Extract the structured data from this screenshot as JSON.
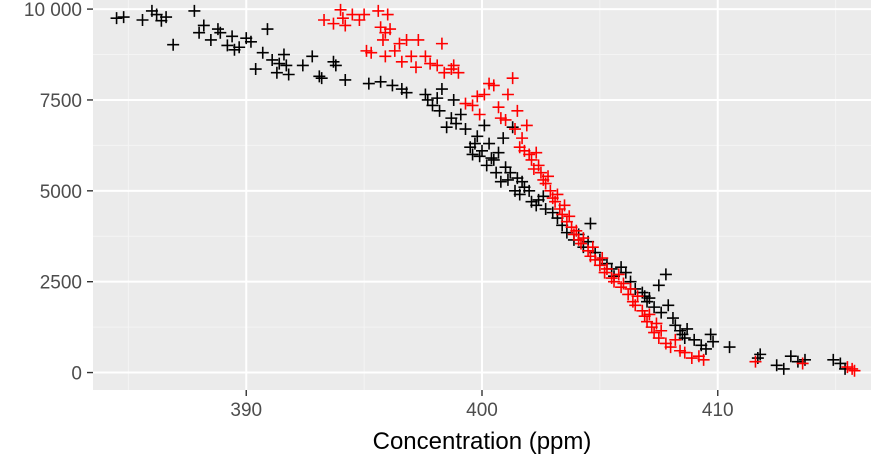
{
  "chart_data": {
    "type": "scatter",
    "title": "",
    "xlabel": "Concentration (ppm)",
    "ylabel": "",
    "xlim": [
      383.5,
      416.5
    ],
    "ylim": [
      -480,
      10250
    ],
    "x_ticks": [
      390,
      400,
      410
    ],
    "x_tick_labels": [
      "390",
      "400",
      "410"
    ],
    "y_ticks": [
      0,
      2500,
      5000,
      7500,
      10000
    ],
    "y_tick_labels": [
      "0",
      "2500",
      "5000",
      "7500",
      "10 000"
    ],
    "grid": true,
    "legend": "none",
    "marker": "plus",
    "colors": {
      "panel_background": "#ebebeb",
      "grid_major": "#ffffff",
      "grid_minor": "#f4f4f4",
      "series_1": "#000000",
      "series_2": "#ff0000"
    },
    "series": [
      {
        "color": "#000000",
        "points": [
          [
            384.5,
            9750
          ],
          [
            384.8,
            9780
          ],
          [
            385.6,
            9700
          ],
          [
            386.0,
            9950
          ],
          [
            386.2,
            9850
          ],
          [
            386.4,
            9680
          ],
          [
            386.6,
            9780
          ],
          [
            386.9,
            9020
          ],
          [
            387.8,
            9950
          ],
          [
            388.0,
            9350
          ],
          [
            388.2,
            9550
          ],
          [
            388.5,
            9150
          ],
          [
            388.8,
            9450
          ],
          [
            388.9,
            9350
          ],
          [
            389.2,
            9000
          ],
          [
            389.4,
            9250
          ],
          [
            389.5,
            8880
          ],
          [
            389.7,
            8950
          ],
          [
            390.0,
            9200
          ],
          [
            390.2,
            9100
          ],
          [
            390.4,
            8350
          ],
          [
            390.7,
            8800
          ],
          [
            390.9,
            9450
          ],
          [
            391.1,
            8600
          ],
          [
            391.3,
            8250
          ],
          [
            391.4,
            8500
          ],
          [
            391.6,
            8750
          ],
          [
            391.7,
            8450
          ],
          [
            391.8,
            8200
          ],
          [
            392.4,
            8450
          ],
          [
            392.8,
            8700
          ],
          [
            393.1,
            8150
          ],
          [
            393.2,
            8100
          ],
          [
            393.7,
            8550
          ],
          [
            393.8,
            8450
          ],
          [
            394.2,
            8050
          ],
          [
            395.2,
            7950
          ],
          [
            395.7,
            8000
          ],
          [
            396.2,
            7900
          ],
          [
            396.6,
            7800
          ],
          [
            396.8,
            7700
          ],
          [
            397.6,
            7650
          ],
          [
            397.7,
            7500
          ],
          [
            397.9,
            7350
          ],
          [
            398.1,
            7550
          ],
          [
            398.2,
            7200
          ],
          [
            398.3,
            7800
          ],
          [
            398.5,
            6750
          ],
          [
            398.7,
            7000
          ],
          [
            398.8,
            7500
          ],
          [
            398.9,
            6850
          ],
          [
            399.1,
            7100
          ],
          [
            399.3,
            6700
          ],
          [
            399.5,
            6200
          ],
          [
            399.6,
            6000
          ],
          [
            399.7,
            6300
          ],
          [
            399.8,
            6500
          ],
          [
            399.9,
            5950
          ],
          [
            400.0,
            6100
          ],
          [
            400.1,
            6800
          ],
          [
            400.2,
            5700
          ],
          [
            400.3,
            6300
          ],
          [
            400.4,
            5900
          ],
          [
            400.5,
            5850
          ],
          [
            400.6,
            5500
          ],
          [
            400.7,
            6050
          ],
          [
            400.8,
            5250
          ],
          [
            400.9,
            6450
          ],
          [
            401.0,
            5650
          ],
          [
            401.1,
            5300
          ],
          [
            401.2,
            5500
          ],
          [
            401.3,
            6750
          ],
          [
            401.4,
            5000
          ],
          [
            401.5,
            5350
          ],
          [
            401.6,
            4900
          ],
          [
            401.7,
            5250
          ],
          [
            401.8,
            5100
          ],
          [
            402.0,
            5000
          ],
          [
            402.1,
            4700
          ],
          [
            402.3,
            4600
          ],
          [
            402.4,
            4750
          ],
          [
            402.6,
            4850
          ],
          [
            402.7,
            4500
          ],
          [
            403.0,
            4400
          ],
          [
            403.2,
            4250
          ],
          [
            403.4,
            4050
          ],
          [
            403.6,
            3850
          ],
          [
            403.9,
            3650
          ],
          [
            404.1,
            3800
          ],
          [
            404.3,
            3450
          ],
          [
            404.5,
            3600
          ],
          [
            404.6,
            4100
          ],
          [
            404.8,
            3300
          ],
          [
            405.0,
            3100
          ],
          [
            405.3,
            3000
          ],
          [
            405.5,
            2850
          ],
          [
            405.6,
            2650
          ],
          [
            405.9,
            2900
          ],
          [
            406.1,
            2750
          ],
          [
            406.3,
            2500
          ],
          [
            406.5,
            2300
          ],
          [
            406.8,
            2200
          ],
          [
            406.9,
            2100
          ],
          [
            407.0,
            1950
          ],
          [
            407.1,
            2050
          ],
          [
            407.3,
            1800
          ],
          [
            407.5,
            2400
          ],
          [
            407.6,
            1650
          ],
          [
            407.8,
            2700
          ],
          [
            407.9,
            1850
          ],
          [
            408.1,
            1500
          ],
          [
            408.2,
            1300
          ],
          [
            408.4,
            1150
          ],
          [
            408.5,
            1050
          ],
          [
            408.6,
            950
          ],
          [
            408.7,
            1200
          ],
          [
            409.0,
            900
          ],
          [
            409.3,
            750
          ],
          [
            409.5,
            650
          ],
          [
            409.7,
            1050
          ],
          [
            409.8,
            850
          ],
          [
            410.5,
            700
          ],
          [
            411.7,
            400
          ],
          [
            411.8,
            500
          ],
          [
            412.5,
            200
          ],
          [
            412.8,
            100
          ],
          [
            413.1,
            450
          ],
          [
            413.4,
            300
          ],
          [
            413.7,
            350
          ],
          [
            414.9,
            350
          ],
          [
            415.2,
            250
          ],
          [
            415.4,
            100
          ]
        ]
      },
      {
        "color": "#ff0000",
        "points": [
          [
            393.3,
            9700
          ],
          [
            393.7,
            9600
          ],
          [
            394.0,
            9980
          ],
          [
            394.1,
            9750
          ],
          [
            394.2,
            9550
          ],
          [
            394.5,
            9850
          ],
          [
            394.8,
            9700
          ],
          [
            395.0,
            9850
          ],
          [
            395.1,
            8850
          ],
          [
            395.3,
            8800
          ],
          [
            395.6,
            9950
          ],
          [
            395.7,
            9500
          ],
          [
            395.8,
            9150
          ],
          [
            395.9,
            9350
          ],
          [
            395.9,
            8700
          ],
          [
            396.0,
            9850
          ],
          [
            396.1,
            9450
          ],
          [
            396.3,
            8850
          ],
          [
            396.5,
            9050
          ],
          [
            396.6,
            8550
          ],
          [
            396.8,
            9150
          ],
          [
            397.0,
            8700
          ],
          [
            397.2,
            8400
          ],
          [
            397.3,
            9150
          ],
          [
            397.6,
            8700
          ],
          [
            397.8,
            8500
          ],
          [
            398.1,
            8450
          ],
          [
            398.3,
            9050
          ],
          [
            398.4,
            8250
          ],
          [
            398.7,
            8350
          ],
          [
            398.8,
            8450
          ],
          [
            399.0,
            8250
          ],
          [
            399.3,
            7400
          ],
          [
            399.6,
            7350
          ],
          [
            399.8,
            7600
          ],
          [
            399.9,
            7100
          ],
          [
            400.1,
            7650
          ],
          [
            400.3,
            7950
          ],
          [
            400.5,
            7900
          ],
          [
            400.7,
            7300
          ],
          [
            400.8,
            7000
          ],
          [
            401.0,
            6950
          ],
          [
            401.1,
            7650
          ],
          [
            401.3,
            8100
          ],
          [
            401.4,
            6700
          ],
          [
            401.5,
            7200
          ],
          [
            401.6,
            6200
          ],
          [
            401.7,
            6450
          ],
          [
            401.8,
            6100
          ],
          [
            401.9,
            6800
          ],
          [
            402.0,
            6000
          ],
          [
            402.1,
            5850
          ],
          [
            402.2,
            5600
          ],
          [
            402.3,
            6050
          ],
          [
            402.4,
            5700
          ],
          [
            402.5,
            5500
          ],
          [
            402.6,
            5300
          ],
          [
            402.7,
            5200
          ],
          [
            402.8,
            5400
          ],
          [
            402.9,
            5000
          ],
          [
            403.0,
            4800
          ],
          [
            403.1,
            4700
          ],
          [
            403.2,
            4900
          ],
          [
            403.3,
            4500
          ],
          [
            403.4,
            4350
          ],
          [
            403.5,
            4600
          ],
          [
            403.6,
            4150
          ],
          [
            403.7,
            4300
          ],
          [
            403.8,
            4000
          ],
          [
            403.9,
            3800
          ],
          [
            404.0,
            3900
          ],
          [
            404.1,
            3650
          ],
          [
            404.2,
            3550
          ],
          [
            404.3,
            3700
          ],
          [
            404.5,
            3350
          ],
          [
            404.6,
            3200
          ],
          [
            404.7,
            3450
          ],
          [
            404.8,
            3100
          ],
          [
            405.0,
            2950
          ],
          [
            405.1,
            3150
          ],
          [
            405.2,
            2750
          ],
          [
            405.3,
            2850
          ],
          [
            405.5,
            2600
          ],
          [
            405.6,
            2500
          ],
          [
            405.8,
            2700
          ],
          [
            405.9,
            2350
          ],
          [
            406.0,
            2450
          ],
          [
            406.2,
            2150
          ],
          [
            406.3,
            2300
          ],
          [
            406.4,
            1950
          ],
          [
            406.5,
            1850
          ],
          [
            406.6,
            2100
          ],
          [
            406.8,
            1700
          ],
          [
            406.9,
            1550
          ],
          [
            407.0,
            1400
          ],
          [
            407.1,
            1600
          ],
          [
            407.2,
            1250
          ],
          [
            407.3,
            1100
          ],
          [
            407.4,
            1350
          ],
          [
            407.5,
            950
          ],
          [
            407.6,
            1150
          ],
          [
            407.8,
            800
          ],
          [
            408.0,
            700
          ],
          [
            408.2,
            900
          ],
          [
            408.4,
            600
          ],
          [
            408.6,
            550
          ],
          [
            408.9,
            400
          ],
          [
            409.2,
            450
          ],
          [
            409.4,
            350
          ],
          [
            411.6,
            300
          ],
          [
            413.6,
            250
          ],
          [
            415.5,
            150
          ],
          [
            415.7,
            100
          ],
          [
            415.8,
            50
          ]
        ]
      }
    ]
  }
}
